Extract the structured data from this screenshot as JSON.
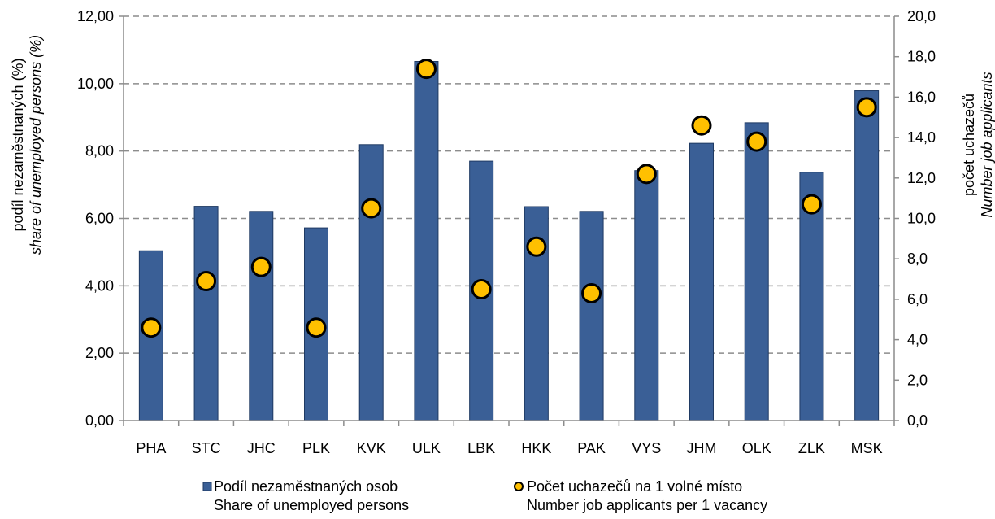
{
  "chart_data": {
    "type": "bar",
    "categories": [
      "PHA",
      "STC",
      "JHC",
      "PLK",
      "KVK",
      "ULK",
      "LBK",
      "HKK",
      "PAK",
      "VYS",
      "JHM",
      "OLK",
      "ZLK",
      "MSK"
    ],
    "series": [
      {
        "name": "Podíl nezaměstnaných osob",
        "name_en": "Share of unemployed persons",
        "type": "bar",
        "axis": "left",
        "color": "#3a5f96",
        "values": [
          5.04,
          6.36,
          6.21,
          5.72,
          8.19,
          10.66,
          7.7,
          6.35,
          6.21,
          7.42,
          8.23,
          8.84,
          7.37,
          9.79
        ]
      },
      {
        "name": "Počet uchazečů na 1 volné místo",
        "name_en": "Number job applicants per 1 vacancy",
        "type": "scatter",
        "axis": "right",
        "color": "#ffc000",
        "values": [
          4.6,
          6.9,
          7.6,
          4.6,
          10.5,
          17.4,
          6.5,
          8.6,
          6.3,
          12.2,
          14.6,
          13.8,
          10.7,
          15.5
        ]
      }
    ],
    "y_left": {
      "label": "podíl nezaměstnaných (%)",
      "label_en": "share of unemployed persons  (%)",
      "min": 0,
      "max": 12,
      "ticks": [
        "0,00",
        "2,00",
        "4,00",
        "6,00",
        "8,00",
        "10,00",
        "12,00"
      ]
    },
    "y_right": {
      "label": "počet uchazečů",
      "label_en": "Number job applicants",
      "min": 0,
      "max": 20,
      "ticks": [
        "0,0",
        "2,0",
        "4,0",
        "6,0",
        "8,0",
        "10,0",
        "12,0",
        "14,0",
        "16,0",
        "18,0",
        "20,0"
      ]
    },
    "grid": true,
    "legend_position": "bottom"
  }
}
